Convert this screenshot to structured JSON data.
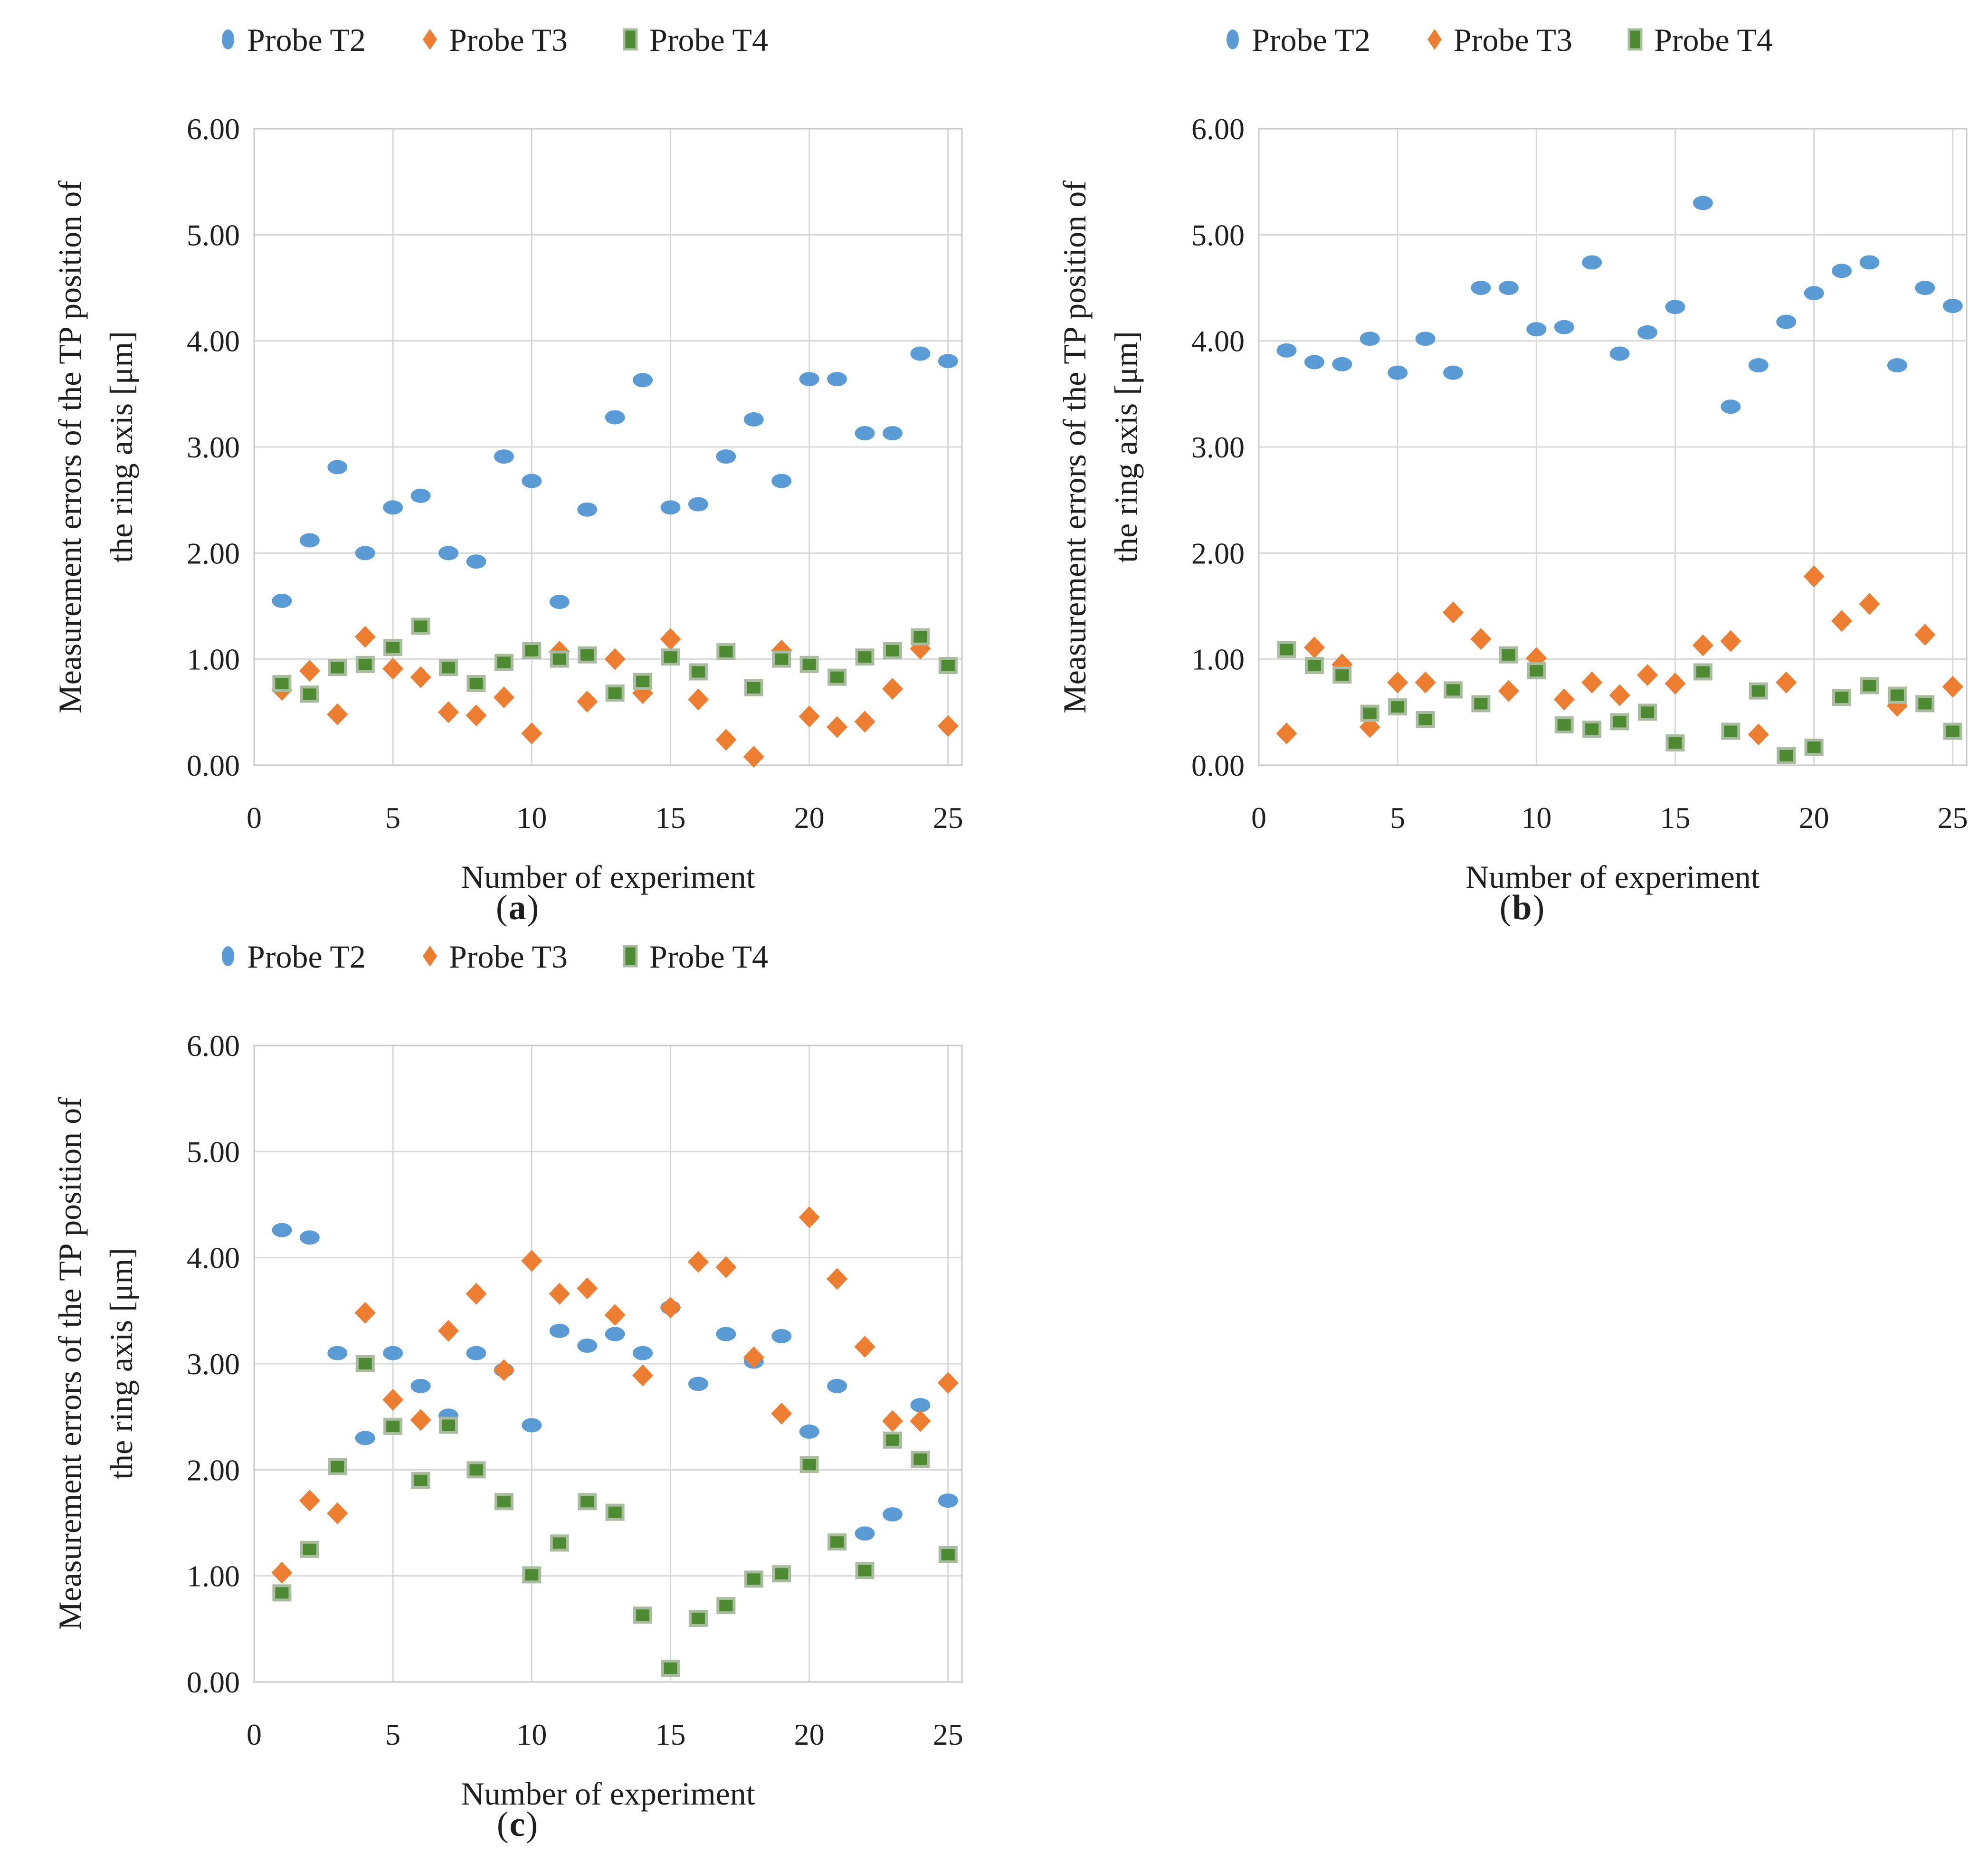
{
  "page": {
    "background": "#ffffff",
    "figure_type": "three-panel scatter figure"
  },
  "styles": {
    "grid_color": "#D9D9D9",
    "axis_color": "#C9C9C9",
    "text_color": "#1f1f1f",
    "blue": "#5B9BD5",
    "orange": "#ED7D31",
    "green_fill": "#4E8A31",
    "green_border": "#A9BCA0"
  },
  "chart_data": [
    {
      "id": "a",
      "type": "scatter",
      "caption_open": "(",
      "caption_letter": "a",
      "caption_close": ")",
      "xlabel": "Number of experiment",
      "ylabel_line1": "Measurement errors of the TP position of",
      "ylabel_line2": "the ring axis [μm]",
      "xlim": [
        0,
        25.5
      ],
      "ylim": [
        0,
        6
      ],
      "grid": true,
      "legend_position": "top",
      "xticks": [
        0,
        5,
        10,
        15,
        20,
        25
      ],
      "xtick_labels": [
        "0",
        "5",
        "10",
        "15",
        "20",
        "25"
      ],
      "ytick_labels": [
        "6.00",
        "5.00",
        "4.00",
        "3.00",
        "2.00",
        "1.00",
        "0.00"
      ],
      "x": [
        1,
        2,
        3,
        4,
        5,
        6,
        7,
        8,
        9,
        10,
        11,
        12,
        13,
        14,
        15,
        16,
        17,
        18,
        19,
        20,
        21,
        22,
        23,
        24,
        25
      ],
      "series": [
        {
          "name": "Probe T2",
          "marker": "circle",
          "color": "#5B9BD5",
          "values": [
            1.55,
            2.12,
            2.81,
            2.0,
            2.43,
            2.54,
            2.0,
            1.92,
            2.91,
            2.68,
            1.54,
            2.41,
            3.28,
            3.63,
            2.43,
            2.46,
            2.91,
            3.26,
            2.68,
            3.64,
            3.64,
            3.13,
            3.13,
            3.88,
            3.81
          ]
        },
        {
          "name": "Probe T3",
          "marker": "diamond",
          "color": "#ED7D31",
          "values": [
            0.71,
            0.89,
            0.48,
            1.21,
            0.91,
            0.83,
            0.5,
            0.47,
            0.64,
            0.3,
            1.07,
            0.6,
            1.0,
            0.68,
            1.19,
            0.62,
            0.24,
            0.08,
            1.08,
            0.46,
            0.36,
            0.41,
            0.72,
            1.1,
            0.37
          ]
        },
        {
          "name": "Probe T4",
          "marker": "square",
          "color": "#4E8A31",
          "border": "#A9BCA0",
          "values": [
            0.77,
            0.67,
            0.92,
            0.95,
            1.11,
            1.31,
            0.92,
            0.77,
            0.97,
            1.08,
            1.0,
            1.04,
            0.68,
            0.79,
            1.02,
            0.88,
            1.07,
            0.73,
            1.0,
            0.95,
            0.83,
            1.02,
            1.08,
            1.21,
            0.94
          ]
        }
      ]
    },
    {
      "id": "b",
      "type": "scatter",
      "caption_open": "(",
      "caption_letter": "b",
      "caption_close": ")",
      "xlabel": "Number of experiment",
      "ylabel_line1": "Measurement errors of the TP position of",
      "ylabel_line2": "the ring axis [μm]",
      "xlim": [
        0,
        25.5
      ],
      "ylim": [
        0,
        6
      ],
      "grid": true,
      "legend_position": "top",
      "xticks": [
        0,
        5,
        10,
        15,
        20,
        25
      ],
      "xtick_labels": [
        "0",
        "5",
        "10",
        "15",
        "20",
        "25"
      ],
      "ytick_labels": [
        "6.00",
        "5.00",
        "4.00",
        "3.00",
        "2.00",
        "1.00",
        "0.00"
      ],
      "x": [
        1,
        2,
        3,
        4,
        5,
        6,
        7,
        8,
        9,
        10,
        11,
        12,
        13,
        14,
        15,
        16,
        17,
        18,
        19,
        20,
        21,
        22,
        23,
        24,
        25
      ],
      "series": [
        {
          "name": "Probe T2",
          "marker": "circle",
          "color": "#5B9BD5",
          "values": [
            3.91,
            3.8,
            3.78,
            4.02,
            3.7,
            4.02,
            3.7,
            4.5,
            4.5,
            4.11,
            4.13,
            4.74,
            3.88,
            4.08,
            4.32,
            5.3,
            3.38,
            3.77,
            4.18,
            4.45,
            4.66,
            4.74,
            3.77,
            4.5,
            4.33
          ]
        },
        {
          "name": "Probe T3",
          "marker": "diamond",
          "color": "#ED7D31",
          "values": [
            0.3,
            1.11,
            0.95,
            0.36,
            0.78,
            0.78,
            1.44,
            1.19,
            0.7,
            1.01,
            0.62,
            0.78,
            0.66,
            0.85,
            0.77,
            1.13,
            1.17,
            0.29,
            0.78,
            1.78,
            1.36,
            1.52,
            0.56,
            1.23,
            0.74
          ]
        },
        {
          "name": "Probe T4",
          "marker": "square",
          "color": "#4E8A31",
          "border": "#A9BCA0",
          "values": [
            1.09,
            0.94,
            0.85,
            0.49,
            0.55,
            0.43,
            0.71,
            0.58,
            1.04,
            0.89,
            0.38,
            0.34,
            0.41,
            0.5,
            0.21,
            0.88,
            0.32,
            0.7,
            0.09,
            0.17,
            0.64,
            0.75,
            0.66,
            0.58,
            0.32
          ]
        }
      ]
    },
    {
      "id": "c",
      "type": "scatter",
      "caption_open": "(",
      "caption_letter": "c",
      "caption_close": ")",
      "xlabel": "Number of experiment",
      "ylabel_line1": "Measurement errors of the TP position of",
      "ylabel_line2": "the ring axis [μm]",
      "xlim": [
        0,
        25.5
      ],
      "ylim": [
        0,
        6
      ],
      "grid": true,
      "legend_position": "top",
      "xticks": [
        0,
        5,
        10,
        15,
        20,
        25
      ],
      "xtick_labels": [
        "0",
        "5",
        "10",
        "15",
        "20",
        "25"
      ],
      "ytick_labels": [
        "6.00",
        "5.00",
        "4.00",
        "3.00",
        "2.00",
        "1.00",
        "0.00"
      ],
      "x": [
        1,
        2,
        3,
        4,
        5,
        6,
        7,
        8,
        9,
        10,
        11,
        12,
        13,
        14,
        15,
        16,
        17,
        18,
        19,
        20,
        21,
        22,
        23,
        24,
        25
      ],
      "series": [
        {
          "name": "Probe T2",
          "marker": "circle",
          "color": "#5B9BD5",
          "values": [
            4.26,
            4.19,
            3.1,
            2.3,
            3.1,
            2.79,
            2.51,
            3.1,
            2.94,
            2.42,
            3.31,
            3.17,
            3.28,
            3.1,
            3.53,
            2.81,
            3.28,
            3.02,
            3.26,
            2.36,
            2.79,
            1.4,
            1.58,
            2.61,
            1.71
          ]
        },
        {
          "name": "Probe T3",
          "marker": "diamond",
          "color": "#ED7D31",
          "values": [
            1.03,
            1.71,
            1.59,
            3.48,
            2.66,
            2.47,
            3.31,
            3.66,
            2.94,
            3.97,
            3.66,
            3.71,
            3.46,
            2.89,
            3.53,
            3.96,
            3.91,
            3.06,
            2.53,
            4.38,
            3.8,
            3.16,
            2.46,
            2.46,
            2.82
          ]
        },
        {
          "name": "Probe T4",
          "marker": "square",
          "color": "#4E8A31",
          "border": "#A9BCA0",
          "values": [
            0.84,
            1.25,
            2.03,
            3.0,
            2.41,
            1.9,
            2.42,
            2.0,
            1.7,
            1.01,
            1.31,
            1.7,
            1.6,
            0.63,
            0.13,
            0.6,
            0.72,
            0.97,
            1.02,
            2.05,
            1.32,
            1.05,
            2.28,
            2.1,
            1.2
          ]
        }
      ]
    }
  ]
}
